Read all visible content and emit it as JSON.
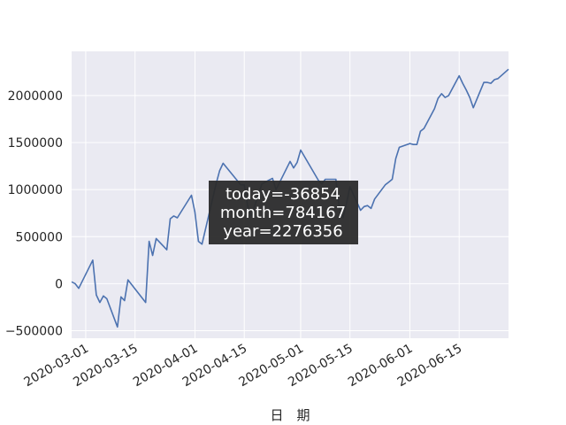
{
  "chart_data": {
    "type": "line",
    "xlabel": "日　期",
    "x_ticks": [
      "2020-03-01",
      "2020-03-15",
      "2020-04-01",
      "2020-04-15",
      "2020-05-01",
      "2020-05-15",
      "2020-06-01",
      "2020-06-15"
    ],
    "y_ticks": [
      -500000,
      0,
      500000,
      1000000,
      1500000,
      2000000
    ],
    "y_tick_labels": [
      "−500000",
      "0",
      "500000",
      "1000000",
      "1500000",
      "2000000"
    ],
    "xlim": [
      "2020-02-26",
      "2020-06-29"
    ],
    "ylim": [
      -580000,
      2470000
    ],
    "grid": true,
    "colors": {
      "line": "#4c72b0",
      "plot_background": "#eaeaf2",
      "grid": "#ffffff",
      "annotation_background": "#2b2b2b"
    },
    "annotation": {
      "lines": [
        "today=-36854",
        "month=784167",
        "year=2276356"
      ]
    },
    "series": [
      {
        "x": [
          "2020-02-26",
          "2020-02-27",
          "2020-02-28",
          "2020-03-03",
          "2020-03-04",
          "2020-03-05",
          "2020-03-06",
          "2020-03-07",
          "2020-03-10",
          "2020-03-11",
          "2020-03-12",
          "2020-03-13",
          "2020-03-18",
          "2020-03-19",
          "2020-03-20",
          "2020-03-21",
          "2020-03-24",
          "2020-03-25",
          "2020-03-26",
          "2020-03-27",
          "2020-03-31",
          "2020-04-01",
          "2020-04-02",
          "2020-04-03",
          "2020-04-07",
          "2020-04-08",
          "2020-04-09",
          "2020-04-14",
          "2020-04-15",
          "2020-04-16",
          "2020-04-17",
          "2020-04-20",
          "2020-04-21",
          "2020-04-22",
          "2020-04-23",
          "2020-04-24",
          "2020-04-28",
          "2020-04-29",
          "2020-04-30",
          "2020-05-01",
          "2020-05-06",
          "2020-05-07",
          "2020-05-08",
          "2020-05-11",
          "2020-05-12",
          "2020-05-13",
          "2020-05-14",
          "2020-05-15",
          "2020-05-18",
          "2020-05-19",
          "2020-05-20",
          "2020-05-21",
          "2020-05-22",
          "2020-05-25",
          "2020-05-26",
          "2020-05-27",
          "2020-05-28",
          "2020-05-29",
          "2020-06-01",
          "2020-06-02",
          "2020-06-03",
          "2020-06-04",
          "2020-06-05",
          "2020-06-08",
          "2020-06-09",
          "2020-06-10",
          "2020-06-11",
          "2020-06-12",
          "2020-06-15",
          "2020-06-16",
          "2020-06-17",
          "2020-06-18",
          "2020-06-19",
          "2020-06-22",
          "2020-06-23",
          "2020-06-24",
          "2020-06-25",
          "2020-06-26",
          "2020-06-29"
        ],
        "y": [
          20000,
          0,
          -50000,
          250000,
          -120000,
          -200000,
          -130000,
          -160000,
          -460000,
          -140000,
          -180000,
          40000,
          -200000,
          450000,
          300000,
          480000,
          360000,
          690000,
          720000,
          700000,
          940000,
          760000,
          450000,
          420000,
          1060000,
          1200000,
          1280000,
          1050000,
          1050000,
          820000,
          720000,
          1060000,
          1080000,
          1100000,
          1120000,
          1000000,
          1300000,
          1230000,
          1290000,
          1420000,
          1100000,
          1060000,
          1110000,
          1110000,
          800000,
          700000,
          850000,
          1030000,
          780000,
          820000,
          830000,
          800000,
          900000,
          1050000,
          1080000,
          1110000,
          1330000,
          1450000,
          1490000,
          1480000,
          1480000,
          1620000,
          1650000,
          1860000,
          1970000,
          2020000,
          1980000,
          2000000,
          2210000,
          2130000,
          2060000,
          1980000,
          1870000,
          2140000,
          2140000,
          2130000,
          2170000,
          2180000,
          2280000
        ]
      }
    ]
  }
}
